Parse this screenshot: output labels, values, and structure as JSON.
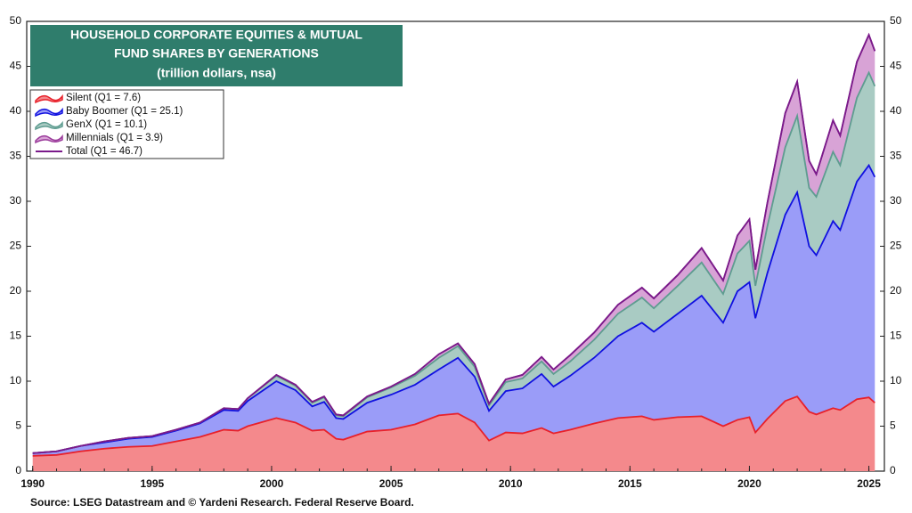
{
  "chart_data": {
    "type": "stacked-area",
    "title": [
      "HOUSEHOLD CORPORATE EQUITIES & MUTUAL",
      "FUND SHARES BY GENERATIONS"
    ],
    "subtitle": "(trillion dollars, nsa)",
    "source": "Source: LSEG Datastream and © Yardeni Research. Federal Reserve Board.",
    "title_color": "#2f7d6c",
    "x": [
      1990,
      1991,
      1992,
      1993,
      1994,
      1995,
      1996,
      1997,
      1998,
      1998.6,
      1999,
      2000.2,
      2001,
      2001.7,
      2002.2,
      2002.7,
      2003,
      2004,
      2005,
      2006,
      2007,
      2007.8,
      2008.5,
      2009.1,
      2009.8,
      2010.5,
      2011.3,
      2011.8,
      2012.5,
      2013.5,
      2014.5,
      2015.5,
      2016,
      2017,
      2018,
      2018.9,
      2019.5,
      2020,
      2020.25,
      2020.75,
      2021.5,
      2022,
      2022.5,
      2022.8,
      2023.5,
      2023.8,
      2024.5,
      2025,
      2025.25
    ],
    "series": [
      {
        "name": "Silent (Q1 = 7.6)",
        "color": "#e8202a",
        "fill": "#f4898c",
        "values": [
          1.7,
          1.8,
          2.2,
          2.5,
          2.7,
          2.8,
          3.3,
          3.8,
          4.6,
          4.5,
          5.0,
          5.9,
          5.4,
          4.5,
          4.6,
          3.6,
          3.5,
          4.4,
          4.6,
          5.2,
          6.2,
          6.4,
          5.4,
          3.4,
          4.3,
          4.2,
          4.8,
          4.2,
          4.6,
          5.3,
          5.9,
          6.1,
          5.7,
          6.0,
          6.1,
          5.0,
          5.7,
          6.0,
          4.3,
          5.8,
          7.8,
          8.3,
          6.6,
          6.3,
          7.0,
          6.8,
          8.0,
          8.2,
          7.6
        ]
      },
      {
        "name": "Baby Boomer (Q1 = 25.1)",
        "color": "#1010e0",
        "fill": "#9a9cf8",
        "values": [
          0.3,
          0.4,
          0.6,
          0.7,
          0.9,
          1.0,
          1.2,
          1.5,
          2.2,
          2.2,
          2.8,
          4.1,
          3.6,
          2.7,
          3.1,
          2.3,
          2.3,
          3.2,
          3.9,
          4.4,
          5.1,
          6.2,
          5.1,
          3.3,
          4.6,
          5.0,
          6.0,
          5.2,
          6.0,
          7.3,
          9.1,
          10.4,
          9.8,
          11.5,
          13.4,
          11.5,
          14.3,
          15.0,
          12.7,
          16.2,
          20.7,
          22.7,
          18.4,
          17.7,
          20.8,
          20.0,
          24.2,
          25.8,
          25.1
        ]
      },
      {
        "name": "GenX (Q1 = 10.1)",
        "color": "#5e9c90",
        "fill": "#a9cbc3",
        "values": [
          0,
          0,
          0,
          0.1,
          0.1,
          0.1,
          0.1,
          0.1,
          0.2,
          0.2,
          0.3,
          0.6,
          0.5,
          0.4,
          0.5,
          0.3,
          0.3,
          0.6,
          0.8,
          1.0,
          1.3,
          1.3,
          1.1,
          0.6,
          1.0,
          1.1,
          1.4,
          1.4,
          1.6,
          2.0,
          2.5,
          2.8,
          2.6,
          3.1,
          3.7,
          3.2,
          4.2,
          4.6,
          3.6,
          5.2,
          7.5,
          8.5,
          6.5,
          6.5,
          7.7,
          7.2,
          9.3,
          10.3,
          10.1
        ]
      },
      {
        "name": "Millennials (Q1 = 3.9)",
        "color": "#9a3a9a",
        "fill": "#d8a3d6",
        "values": [
          0,
          0,
          0,
          0,
          0,
          0,
          0,
          0,
          0,
          0,
          0,
          0.1,
          0.1,
          0.1,
          0.1,
          0.1,
          0.1,
          0.1,
          0.1,
          0.2,
          0.4,
          0.3,
          0.3,
          0.2,
          0.3,
          0.4,
          0.5,
          0.5,
          0.7,
          0.8,
          1.0,
          1.1,
          1.1,
          1.2,
          1.6,
          1.5,
          2.0,
          2.4,
          1.8,
          2.6,
          3.8,
          3.8,
          3.0,
          2.5,
          3.5,
          3.3,
          4.0,
          4.2,
          3.9
        ]
      }
    ],
    "total": {
      "name": "Total (Q1 = 46.7)",
      "color": "#7a1a8a",
      "values": [
        2.0,
        2.2,
        2.8,
        3.3,
        3.7,
        3.9,
        4.6,
        5.4,
        7.0,
        6.9,
        8.1,
        10.7,
        9.6,
        7.7,
        8.3,
        6.3,
        6.2,
        8.3,
        9.4,
        10.8,
        13.0,
        14.2,
        11.9,
        7.5,
        10.2,
        10.7,
        12.7,
        11.3,
        12.9,
        15.4,
        18.5,
        20.4,
        19.2,
        21.8,
        24.8,
        21.2,
        26.2,
        28.0,
        22.4,
        29.8,
        39.8,
        43.3,
        34.5,
        33.0,
        39.0,
        37.3,
        45.5,
        48.5,
        46.7
      ]
    },
    "xlim": [
      1989.75,
      2025.65
    ],
    "xticks": [
      1990,
      1995,
      2000,
      2005,
      2010,
      2015,
      2020,
      2025
    ],
    "ylim": [
      0,
      50
    ],
    "yticks": [
      0,
      5,
      10,
      15,
      20,
      25,
      30,
      35,
      40,
      45,
      50
    ],
    "grid": false
  }
}
